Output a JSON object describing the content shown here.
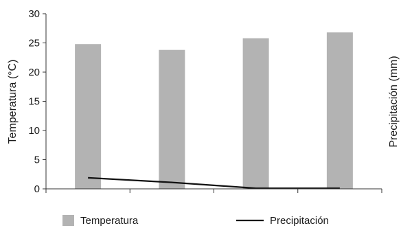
{
  "chart_data": {
    "type": "bar",
    "categories": [
      "",
      "",
      "",
      ""
    ],
    "series": [
      {
        "name": "Temperatura",
        "type": "bar",
        "axis": "left",
        "color": "#b3b3b3",
        "values": [
          24.8,
          23.8,
          25.8,
          26.8
        ]
      },
      {
        "name": "Precipitación",
        "type": "line",
        "axis": "left",
        "color": "#111111",
        "values": [
          1.9,
          1.1,
          0.1,
          0.1
        ]
      }
    ],
    "ylabel": "Temperatura (°C)",
    "y2label": "Precipitación (mm)",
    "ylim": [
      0,
      30
    ],
    "yticks": [
      0,
      5,
      10,
      15,
      20,
      25,
      30
    ],
    "grid": false,
    "legend": "bottom"
  }
}
